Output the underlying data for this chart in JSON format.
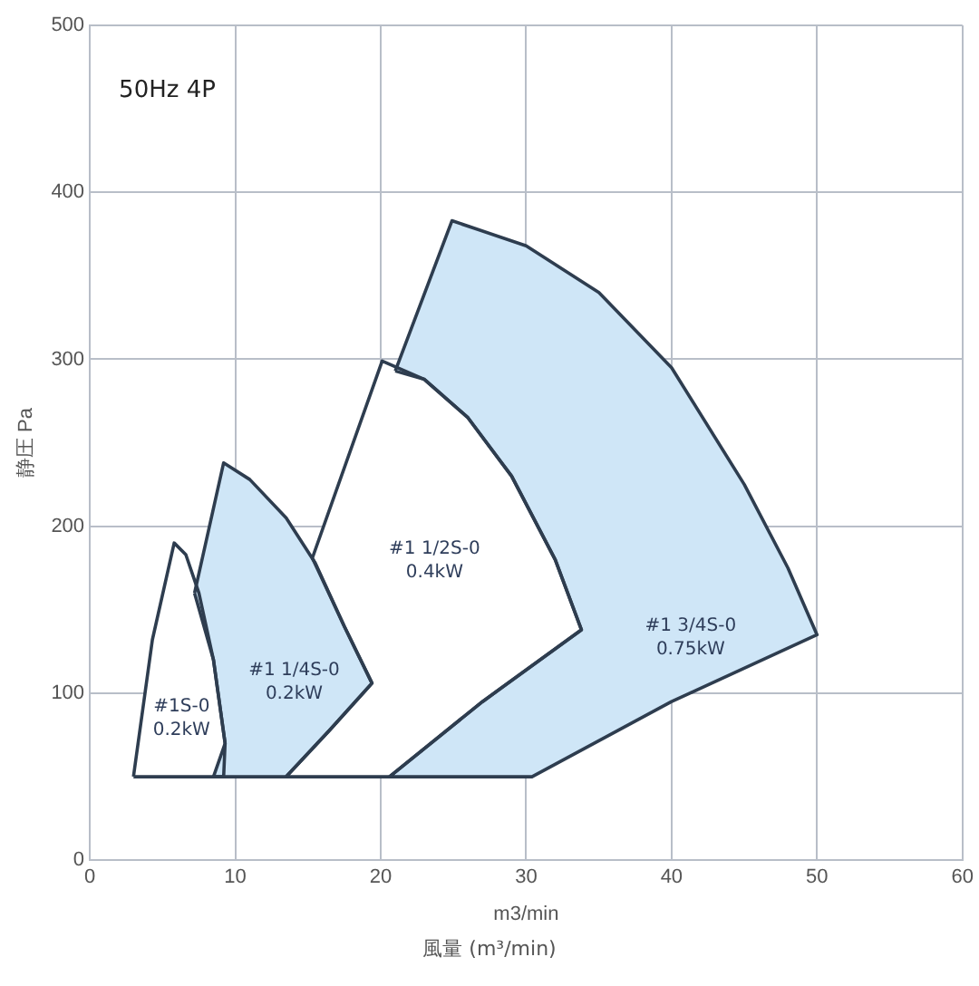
{
  "chart_data": {
    "type": "area",
    "title": "50Hz 4P",
    "xlabel": "m3/min",
    "ylabel": "静圧 Pa",
    "annotations": [
      "風量 (m³/min)"
    ],
    "xlim": [
      0,
      60
    ],
    "xticks": [
      0,
      10,
      20,
      30,
      40,
      50,
      60
    ],
    "ylim": [
      0,
      500
    ],
    "yticks": [
      0,
      100,
      200,
      300,
      400,
      500
    ],
    "grid": true,
    "legend": false,
    "marker": "none",
    "series": [
      {
        "name": "#1S-0 0.2kW",
        "color": "#ffffff",
        "x": [
          3,
          4.3,
          5.8,
          6.6,
          7.5,
          8.5,
          9.3,
          9.2,
          3
        ],
        "values": [
          50,
          132,
          190,
          183,
          160,
          120,
          70,
          50,
          50
        ]
      },
      {
        "name": "#1 1/4S-0 0.2kW",
        "color": "#cfe6f7",
        "x": [
          7.2,
          9.2,
          11,
          13.5,
          15.5,
          17.5,
          19.4,
          16.5,
          13.5,
          8.5,
          9.3,
          8.5,
          7.2
        ],
        "values": [
          160,
          238,
          228,
          205,
          178,
          140,
          106,
          78,
          50,
          50,
          70,
          120,
          160
        ]
      },
      {
        "name": "#1 1/2S-0 0.4kW",
        "color": "#ffffff",
        "x": [
          15.3,
          20.1,
          23,
          26,
          29,
          32,
          33.8,
          27,
          20.6,
          13.5,
          16.5,
          19.4,
          17.5,
          15.3
        ],
        "values": [
          181,
          299,
          288,
          265,
          230,
          180,
          138,
          95,
          50,
          50,
          78,
          106,
          140,
          181
        ]
      },
      {
        "name": "#1 3/4S-0 0.75kW",
        "color": "#cfe6f7",
        "x": [
          21,
          24.9,
          30,
          35,
          40,
          45,
          48,
          50,
          40,
          30.4,
          20.6,
          27,
          33.8,
          32,
          29,
          26,
          23,
          21
        ],
        "values": [
          293,
          383,
          368,
          340,
          295,
          225,
          175,
          135,
          95,
          50,
          50,
          95,
          138,
          180,
          230,
          265,
          288,
          293
        ]
      }
    ]
  }
}
